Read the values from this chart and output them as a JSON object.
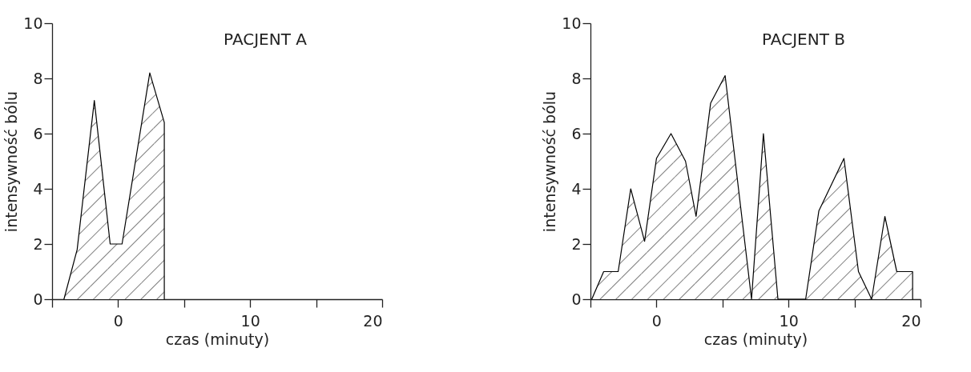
{
  "chart_data": [
    {
      "type": "area",
      "title": "PACJENT A",
      "xlabel": "czas (minuty)",
      "ylabel": "intensywność bólu",
      "color": "#000000",
      "x": [
        -4.1,
        -3.1,
        -1.8,
        -0.6,
        0.3,
        2.4,
        3.5,
        3.5
      ],
      "values": [
        0,
        1.8,
        7.2,
        2.0,
        2.0,
        8.2,
        6.4,
        0
      ],
      "xlim": [
        -5,
        20
      ],
      "ylim": [
        0,
        10
      ],
      "xticks": [
        {
          "value": -5,
          "label": null
        },
        0,
        {
          "value": 5,
          "label": null
        },
        10,
        {
          "value": 15,
          "label": null
        },
        20
      ],
      "yticks": [
        0,
        2,
        4,
        6,
        8,
        10
      ]
    },
    {
      "type": "area",
      "title": "PACJENT B",
      "xlabel": "czas (minuty)",
      "ylabel": "intensywność bólu",
      "color": "#000000",
      "x": [
        -4.9,
        -4.0,
        -2.9,
        -1.95,
        -0.9,
        0,
        1.1,
        2.2,
        3.0,
        4.1,
        5.2,
        7.2,
        8.1,
        9.2,
        11.3,
        12.3,
        14.2,
        15.3,
        16.3,
        17.3,
        18.2,
        19.4,
        19.4
      ],
      "values": [
        0,
        1,
        1,
        4.0,
        2.1,
        5.1,
        6.0,
        5.0,
        3.0,
        7.1,
        8.1,
        0,
        6.0,
        0,
        0,
        3.2,
        5.1,
        1.0,
        0,
        3.0,
        1.0,
        1.0,
        0
      ],
      "xlim": [
        -5,
        20
      ],
      "ylim": [
        0,
        10
      ],
      "xticks": [
        {
          "value": -5,
          "label": null
        },
        0,
        {
          "value": 5,
          "label": null
        },
        10,
        {
          "value": 15,
          "label": null
        },
        20
      ],
      "yticks": [
        0,
        2,
        4,
        6,
        8,
        10
      ]
    }
  ]
}
